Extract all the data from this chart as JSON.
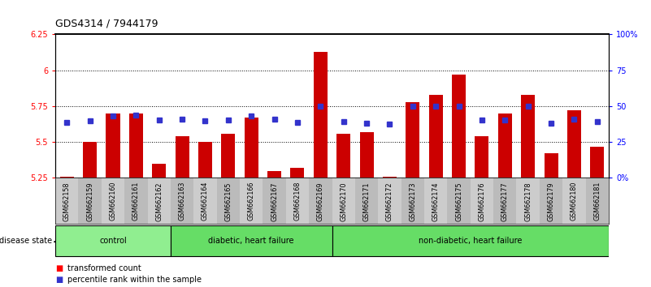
{
  "title": "GDS4314 / 7944179",
  "samples": [
    "GSM662158",
    "GSM662159",
    "GSM662160",
    "GSM662161",
    "GSM662162",
    "GSM662163",
    "GSM662164",
    "GSM662165",
    "GSM662166",
    "GSM662167",
    "GSM662168",
    "GSM662169",
    "GSM662170",
    "GSM662171",
    "GSM662172",
    "GSM662173",
    "GSM662174",
    "GSM662175",
    "GSM662176",
    "GSM662177",
    "GSM662178",
    "GSM662179",
    "GSM662180",
    "GSM662181"
  ],
  "bar_values": [
    5.26,
    5.5,
    5.7,
    5.7,
    5.35,
    5.54,
    5.5,
    5.56,
    5.67,
    5.3,
    5.32,
    6.13,
    5.56,
    5.57,
    5.26,
    5.78,
    5.83,
    5.97,
    5.54,
    5.7,
    5.83,
    5.42,
    5.72,
    5.47
  ],
  "blue_values": [
    5.635,
    5.648,
    5.68,
    5.685,
    5.655,
    5.66,
    5.648,
    5.652,
    5.68,
    5.658,
    5.638,
    5.75,
    5.645,
    5.634,
    5.628,
    5.75,
    5.75,
    5.748,
    5.655,
    5.656,
    5.75,
    5.63,
    5.66,
    5.642
  ],
  "group_boundaries": [
    {
      "label": "control",
      "start": 0,
      "end": 4,
      "color": "#90EE90"
    },
    {
      "label": "diabetic, heart failure",
      "start": 5,
      "end": 11,
      "color": "#66DD66"
    },
    {
      "label": "non-diabetic, heart failure",
      "start": 12,
      "end": 23,
      "color": "#66DD66"
    }
  ],
  "ylim_left": [
    5.25,
    6.25
  ],
  "ylim_right": [
    0,
    100
  ],
  "yticks_left": [
    5.25,
    5.5,
    5.75,
    6.0,
    6.25
  ],
  "yticks_right": [
    0,
    25,
    50,
    75,
    100
  ],
  "ytick_labels_left": [
    "5.25",
    "5.5",
    "5.75",
    "6",
    "6.25"
  ],
  "ytick_labels_right": [
    "0%",
    "25",
    "50",
    "75",
    "100%"
  ],
  "bar_color": "#CC0000",
  "blue_color": "#3333CC",
  "title_fontsize": 9,
  "tick_fontsize": 7,
  "label_fontsize": 7.5,
  "grid_yticks": [
    5.5,
    5.75,
    6.0
  ]
}
